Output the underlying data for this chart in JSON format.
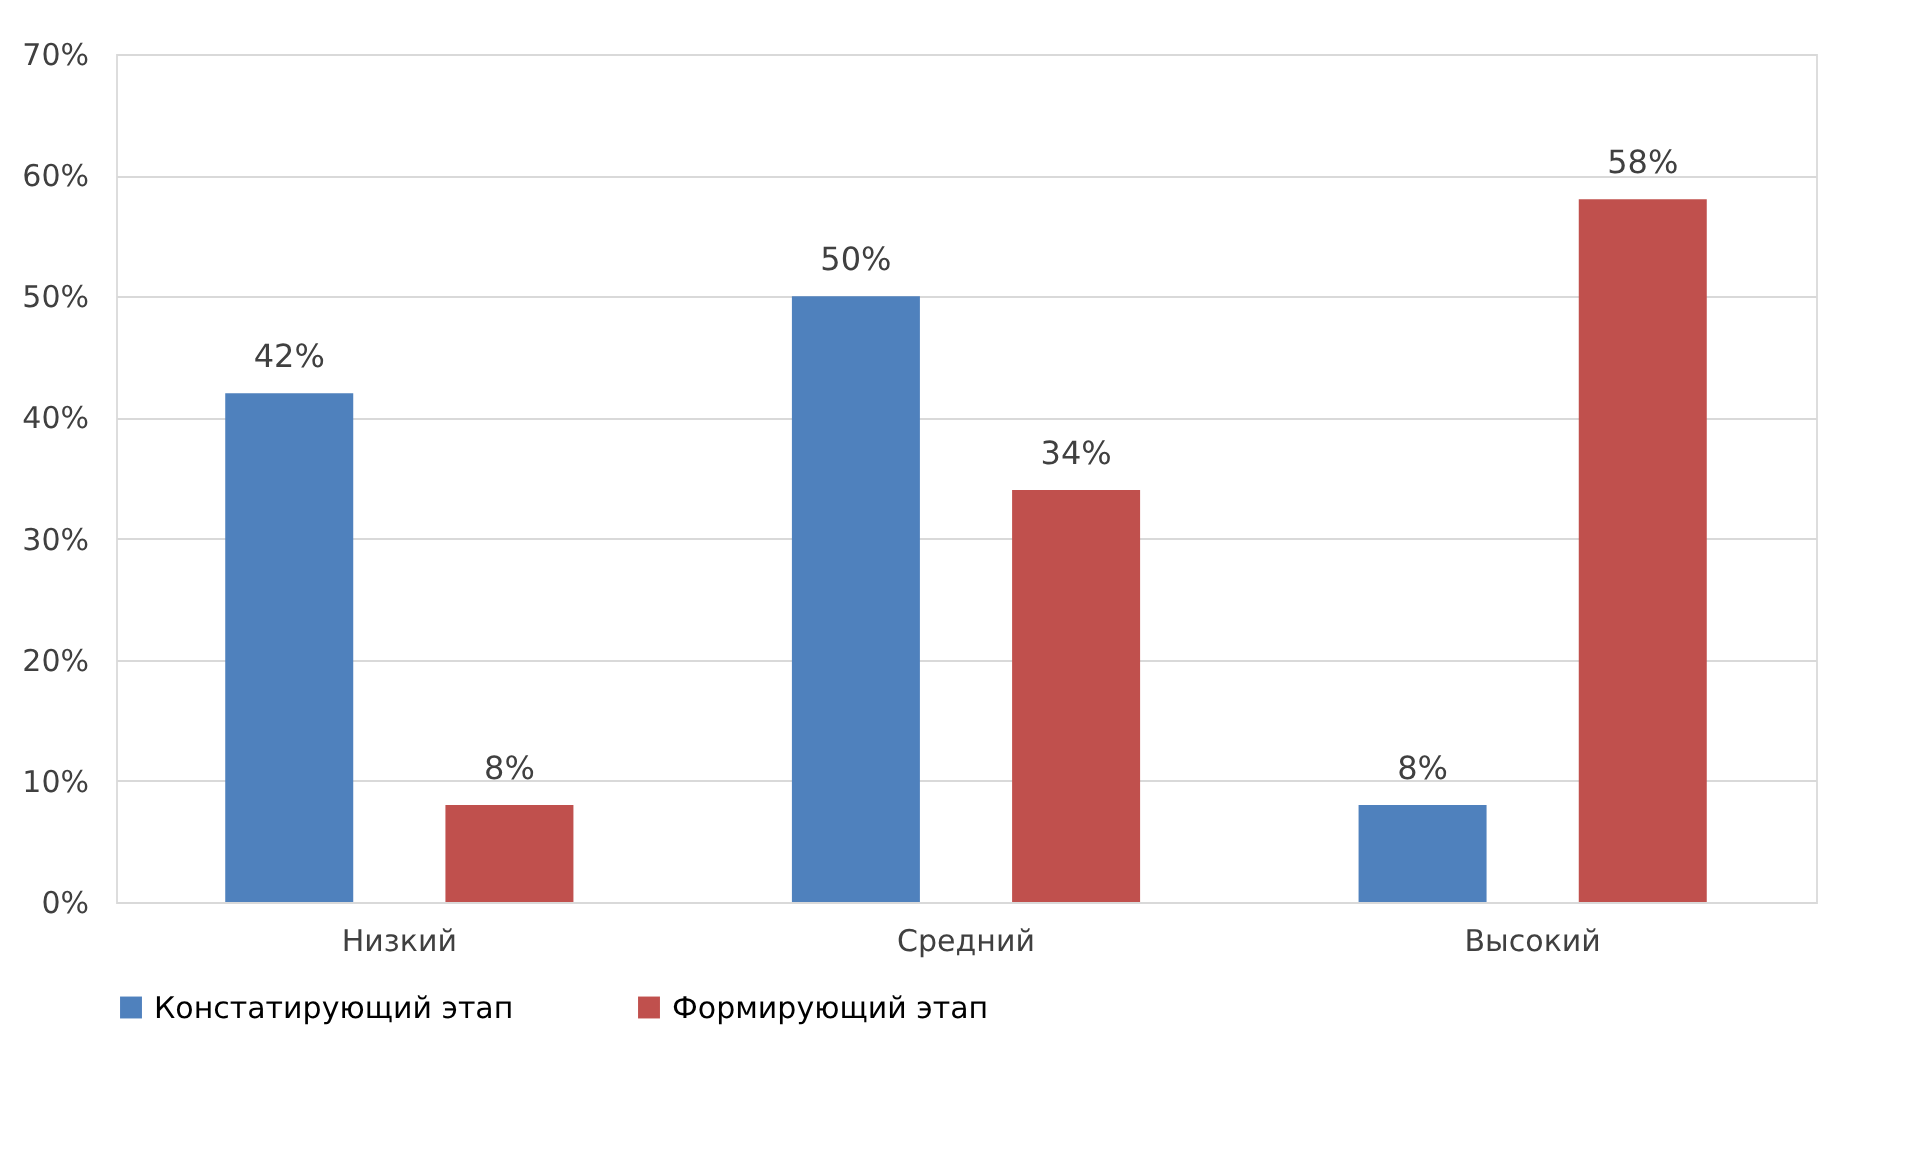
{
  "chart_data": {
    "type": "bar",
    "categories": [
      "Низкий",
      "Средний",
      "Высокий"
    ],
    "series": [
      {
        "name": "Констатирующий этап",
        "color": "#4f81bd",
        "values": [
          42,
          50,
          8
        ],
        "value_labels": [
          "42%",
          "50%",
          "8%"
        ]
      },
      {
        "name": "Формирующий этап",
        "color": "#c0504d",
        "values": [
          8,
          34,
          58
        ],
        "value_labels": [
          "8%",
          "34%",
          "58%"
        ]
      }
    ],
    "ylim": [
      0,
      70
    ],
    "yticks": [
      {
        "value": 0,
        "label": "0%"
      },
      {
        "value": 10,
        "label": "10%"
      },
      {
        "value": 20,
        "label": "20%"
      },
      {
        "value": 30,
        "label": "30%"
      },
      {
        "value": 40,
        "label": "40%"
      },
      {
        "value": 50,
        "label": "50%"
      },
      {
        "value": 60,
        "label": "60%"
      },
      {
        "value": 70,
        "label": "70%"
      }
    ],
    "grid": "y",
    "legend": "bottom"
  }
}
